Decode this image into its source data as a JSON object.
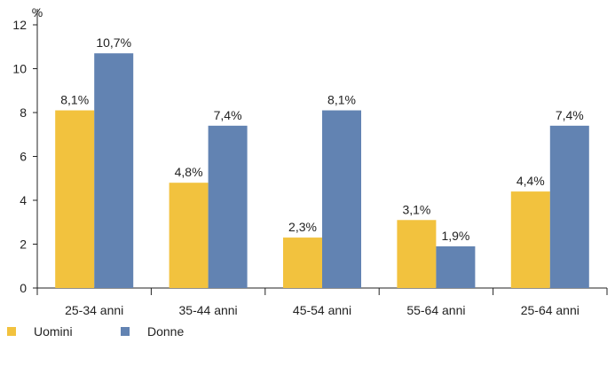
{
  "chart_data": {
    "type": "bar",
    "unit_label": "%",
    "categories": [
      "25-34 anni",
      "35-44 anni",
      "45-54 anni",
      "55-64 anni",
      "25-64 anni"
    ],
    "series": [
      {
        "name": "Uomini",
        "values": [
          8.1,
          4.8,
          2.3,
          3.1,
          4.4
        ],
        "labels": [
          "8,1%",
          "4,8%",
          "2,3%",
          "3,1%",
          "4,4%"
        ],
        "color": "#F2C23E"
      },
      {
        "name": "Donne",
        "values": [
          10.7,
          7.4,
          8.1,
          1.9,
          7.4
        ],
        "labels": [
          "10,7%",
          "7,4%",
          "8,1%",
          "1,9%",
          "7,4%"
        ],
        "color": "#6283B2"
      }
    ],
    "ylim": [
      0,
      12
    ],
    "yticks": [
      0,
      2,
      4,
      6,
      8,
      10,
      12
    ],
    "grid": false,
    "legend_position": "bottom-left"
  }
}
